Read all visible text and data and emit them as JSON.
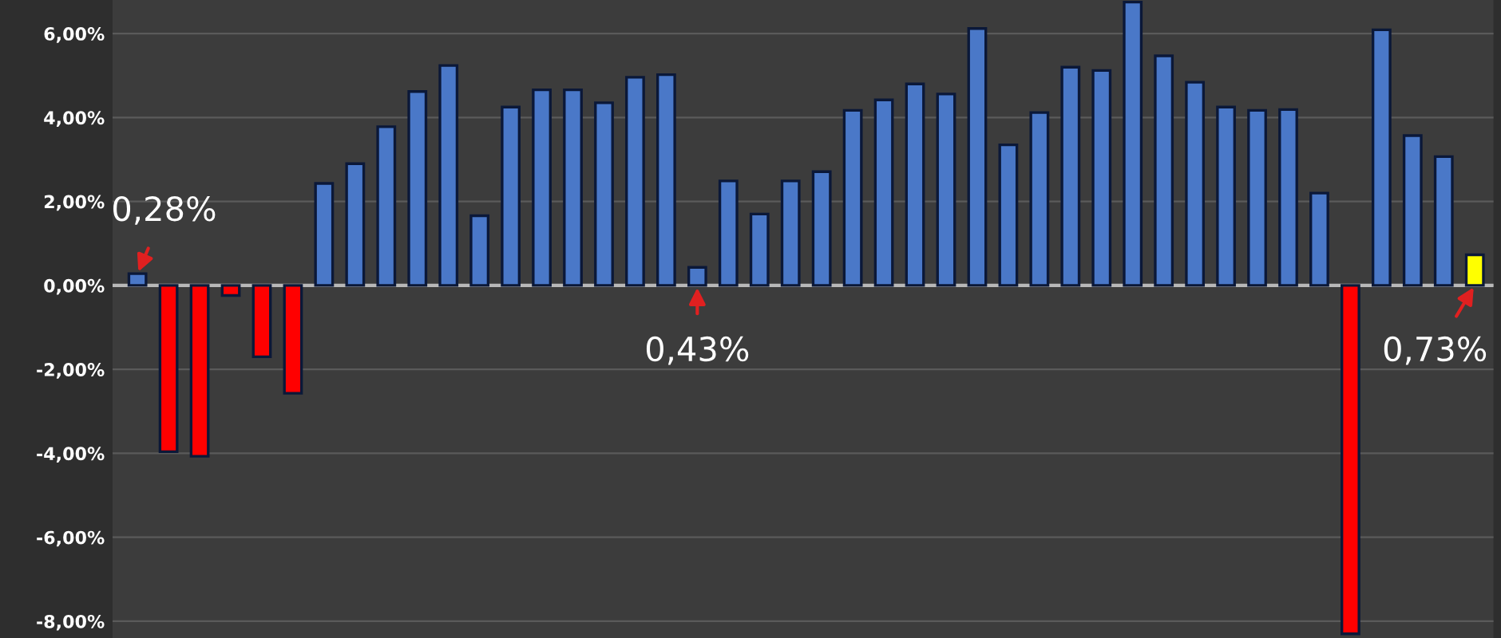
{
  "chart_data": {
    "type": "bar",
    "categories": [
      null,
      null,
      null,
      null,
      null,
      null,
      null,
      null,
      null,
      null,
      null,
      null,
      null,
      null,
      null,
      null,
      null,
      null,
      null,
      null,
      null,
      null,
      null,
      null,
      null,
      null,
      null,
      null,
      null,
      null,
      null,
      null,
      null,
      null,
      null,
      null,
      null,
      null,
      null,
      null,
      null,
      null,
      null,
      null
    ],
    "values": [
      0.28,
      -3.96,
      -4.07,
      -0.24,
      -1.7,
      -2.57,
      2.43,
      2.9,
      3.78,
      4.62,
      5.24,
      1.66,
      4.25,
      4.66,
      4.66,
      4.35,
      4.96,
      5.02,
      0.43,
      2.49,
      1.7,
      2.49,
      2.71,
      4.17,
      4.42,
      4.8,
      4.56,
      6.12,
      3.35,
      4.12,
      5.2,
      5.12,
      6.75,
      5.47,
      4.84,
      4.25,
      4.17,
      4.19,
      2.2,
      -8.3,
      6.09,
      3.57,
      3.07,
      0.73
    ],
    "colors": [
      "#4a78c8",
      "#ff0000",
      "#ff0000",
      "#ff0000",
      "#ff0000",
      "#ff0000",
      "#4a78c8",
      "#4a78c8",
      "#4a78c8",
      "#4a78c8",
      "#4a78c8",
      "#4a78c8",
      "#4a78c8",
      "#4a78c8",
      "#4a78c8",
      "#4a78c8",
      "#4a78c8",
      "#4a78c8",
      "#4a78c8",
      "#4a78c8",
      "#4a78c8",
      "#4a78c8",
      "#4a78c8",
      "#4a78c8",
      "#4a78c8",
      "#4a78c8",
      "#4a78c8",
      "#4a78c8",
      "#4a78c8",
      "#4a78c8",
      "#4a78c8",
      "#4a78c8",
      "#4a78c8",
      "#4a78c8",
      "#4a78c8",
      "#4a78c8",
      "#4a78c8",
      "#4a78c8",
      "#4a78c8",
      "#ff0000",
      "#4a78c8",
      "#4a78c8",
      "#4a78c8",
      "#ffff00"
    ],
    "value_labels": [
      "0,28%",
      null,
      null,
      null,
      null,
      null,
      null,
      null,
      null,
      null,
      null,
      null,
      null,
      null,
      null,
      null,
      null,
      null,
      "0,43%",
      null,
      null,
      null,
      null,
      null,
      null,
      null,
      null,
      null,
      null,
      null,
      null,
      null,
      null,
      null,
      null,
      null,
      null,
      null,
      null,
      null,
      null,
      null,
      null,
      "0,73%"
    ],
    "ylim": [
      -8.4,
      6.8
    ],
    "yticks": [
      {
        "value": -8,
        "label": "-8,00%"
      },
      {
        "value": -6,
        "label": "-6,00%"
      },
      {
        "value": -4,
        "label": "-4,00%"
      },
      {
        "value": -2,
        "label": "-2,00%"
      },
      {
        "value": 0,
        "label": "0,00%"
      },
      {
        "value": 2,
        "label": "2,00%"
      },
      {
        "value": 4,
        "label": "4,00%"
      },
      {
        "value": 6,
        "label": "6,00%"
      }
    ],
    "grid": "y"
  }
}
